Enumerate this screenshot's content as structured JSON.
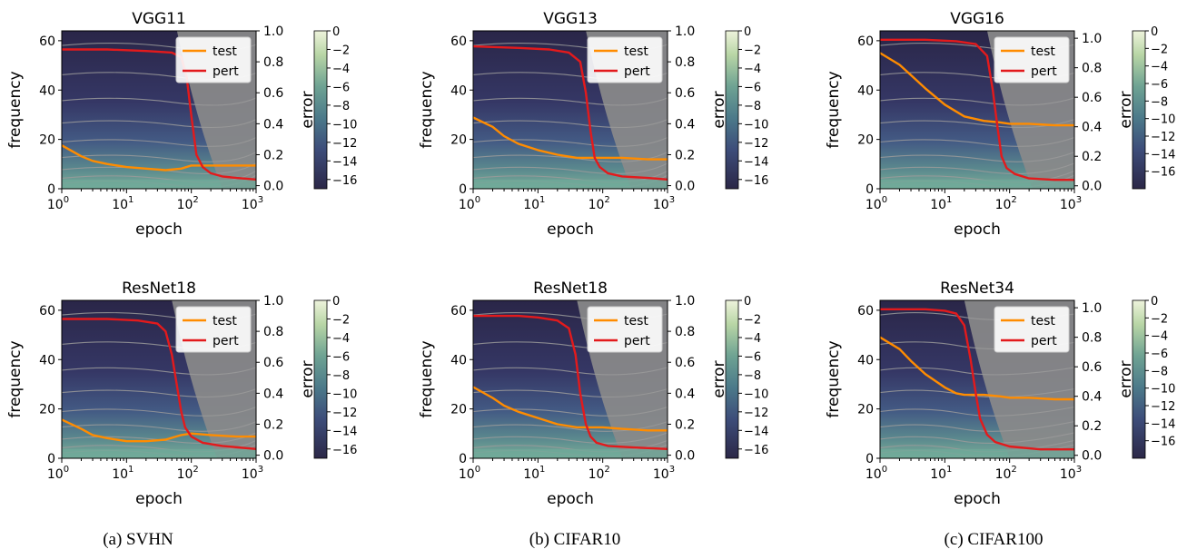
{
  "chart_data": [
    {
      "type": "heatmap",
      "title": "VGG11",
      "xlabel": "epoch",
      "ylabel": "frequency",
      "right_ylabel": "error",
      "x_scale": "log",
      "xlim": [
        1,
        1000
      ],
      "ylim": [
        0,
        64
      ],
      "right_ylim": [
        -0.02,
        1.0
      ],
      "colorbar": {
        "label": "",
        "range": [
          -17,
          0
        ],
        "ticks": [
          "0",
          "−2",
          "−4",
          "−6",
          "−8",
          "−10",
          "−12",
          "−14",
          "−16"
        ]
      },
      "x_ticks": [
        "10^0",
        "10^1",
        "10^2",
        "10^3"
      ],
      "y_ticks": [
        "0",
        "20",
        "40",
        "60"
      ],
      "right_ticks": [
        "0.0",
        "0.2",
        "0.4",
        "0.6",
        "0.8",
        "1.0"
      ],
      "legend": {
        "position": "top-right",
        "entries": [
          "test",
          "pert"
        ]
      },
      "series": [
        {
          "name": "test",
          "color": "#ff8c00",
          "x": [
            1,
            2,
            3,
            5,
            10,
            20,
            40,
            70,
            100,
            200,
            500,
            1000
          ],
          "values": [
            0.26,
            0.19,
            0.16,
            0.14,
            0.12,
            0.11,
            0.1,
            0.11,
            0.13,
            0.13,
            0.13,
            0.13
          ]
        },
        {
          "name": "pert",
          "color": "#e31a1c",
          "x": [
            1,
            5,
            20,
            50,
            70,
            85,
            100,
            120,
            150,
            200,
            300,
            500,
            1000
          ],
          "values": [
            0.88,
            0.88,
            0.87,
            0.86,
            0.83,
            0.7,
            0.45,
            0.2,
            0.12,
            0.08,
            0.06,
            0.05,
            0.04
          ]
        }
      ]
    },
    {
      "type": "heatmap",
      "title": "VGG13",
      "xlabel": "epoch",
      "ylabel": "frequency",
      "right_ylabel": "error",
      "x_scale": "log",
      "xlim": [
        1,
        1000
      ],
      "ylim": [
        0,
        64
      ],
      "right_ylim": [
        -0.02,
        1.0
      ],
      "colorbar": {
        "label": "",
        "range": [
          -17,
          0
        ],
        "ticks": [
          "0",
          "−2",
          "−4",
          "−6",
          "−8",
          "−10",
          "−12",
          "−14",
          "−16"
        ]
      },
      "x_ticks": [
        "10^0",
        "10^1",
        "10^2",
        "10^3"
      ],
      "y_ticks": [
        "0",
        "20",
        "40",
        "60"
      ],
      "right_ticks": [
        "0.0",
        "0.2",
        "0.4",
        "0.6",
        "0.8",
        "1.0"
      ],
      "legend": {
        "position": "top-right",
        "entries": [
          "test",
          "pert"
        ]
      },
      "series": [
        {
          "name": "test",
          "color": "#ff8c00",
          "x": [
            1,
            2,
            3,
            5,
            10,
            20,
            40,
            70,
            100,
            200,
            500,
            1000
          ],
          "values": [
            0.44,
            0.38,
            0.32,
            0.27,
            0.23,
            0.2,
            0.18,
            0.18,
            0.18,
            0.18,
            0.17,
            0.17
          ]
        },
        {
          "name": "pert",
          "color": "#e31a1c",
          "x": [
            1,
            5,
            15,
            30,
            45,
            55,
            65,
            75,
            90,
            120,
            200,
            500,
            1000
          ],
          "values": [
            0.9,
            0.89,
            0.88,
            0.86,
            0.8,
            0.6,
            0.35,
            0.18,
            0.12,
            0.08,
            0.06,
            0.05,
            0.04
          ]
        }
      ]
    },
    {
      "type": "heatmap",
      "title": "VGG16",
      "xlabel": "epoch",
      "ylabel": "frequency",
      "right_ylabel": "error",
      "x_scale": "log",
      "xlim": [
        1,
        1000
      ],
      "ylim": [
        0,
        64
      ],
      "right_ylim": [
        -0.02,
        1.05
      ],
      "colorbar": {
        "label": "",
        "range": [
          -18,
          0
        ],
        "ticks": [
          "0",
          "−2",
          "−4",
          "−6",
          "−8",
          "−10",
          "−12",
          "−14",
          "−16"
        ]
      },
      "x_ticks": [
        "10^0",
        "10^1",
        "10^2",
        "10^3"
      ],
      "y_ticks": [
        "0",
        "20",
        "40",
        "60"
      ],
      "right_ticks": [
        "0.0",
        "0.2",
        "0.4",
        "0.6",
        "0.8",
        "1.0"
      ],
      "legend": {
        "position": "top-right",
        "entries": [
          "test",
          "pert"
        ]
      },
      "series": [
        {
          "name": "test",
          "color": "#ff8c00",
          "x": [
            1,
            2,
            3,
            5,
            10,
            20,
            40,
            70,
            100,
            200,
            500,
            1000
          ],
          "values": [
            0.9,
            0.82,
            0.75,
            0.66,
            0.55,
            0.47,
            0.44,
            0.43,
            0.42,
            0.42,
            0.41,
            0.41
          ]
        },
        {
          "name": "pert",
          "color": "#e31a1c",
          "x": [
            1,
            5,
            15,
            30,
            45,
            55,
            65,
            75,
            90,
            120,
            200,
            500,
            1000
          ],
          "values": [
            0.99,
            0.99,
            0.98,
            0.96,
            0.88,
            0.65,
            0.4,
            0.2,
            0.12,
            0.08,
            0.05,
            0.04,
            0.04
          ]
        }
      ]
    },
    {
      "type": "heatmap",
      "title": "ResNet18",
      "xlabel": "epoch",
      "ylabel": "frequency",
      "right_ylabel": "error",
      "x_scale": "log",
      "xlim": [
        1,
        1000
      ],
      "ylim": [
        0,
        64
      ],
      "right_ylim": [
        -0.02,
        1.0
      ],
      "colorbar": {
        "label": "",
        "range": [
          -17,
          0
        ],
        "ticks": [
          "0",
          "−2",
          "−4",
          "−6",
          "−8",
          "−10",
          "−12",
          "−14",
          "−16"
        ]
      },
      "x_ticks": [
        "10^0",
        "10^1",
        "10^2",
        "10^3"
      ],
      "y_ticks": [
        "0",
        "20",
        "40",
        "60"
      ],
      "right_ticks": [
        "0.0",
        "0.2",
        "0.4",
        "0.6",
        "0.8",
        "1.0"
      ],
      "legend": {
        "position": "top-right",
        "entries": [
          "test",
          "pert"
        ]
      },
      "series": [
        {
          "name": "test",
          "color": "#ff8c00",
          "x": [
            1,
            2,
            3,
            5,
            10,
            20,
            40,
            70,
            100,
            200,
            500,
            1000
          ],
          "values": [
            0.23,
            0.17,
            0.13,
            0.11,
            0.09,
            0.09,
            0.1,
            0.13,
            0.14,
            0.13,
            0.12,
            0.12
          ]
        },
        {
          "name": "pert",
          "color": "#e31a1c",
          "x": [
            1,
            5,
            15,
            30,
            40,
            50,
            60,
            70,
            80,
            100,
            150,
            300,
            1000
          ],
          "values": [
            0.88,
            0.88,
            0.87,
            0.85,
            0.8,
            0.65,
            0.45,
            0.28,
            0.18,
            0.12,
            0.08,
            0.06,
            0.04
          ]
        }
      ]
    },
    {
      "type": "heatmap",
      "title": "ResNet18",
      "xlabel": "epoch",
      "ylabel": "frequency",
      "right_ylabel": "error",
      "x_scale": "log",
      "xlim": [
        1,
        1000
      ],
      "ylim": [
        0,
        64
      ],
      "right_ylim": [
        -0.02,
        1.0
      ],
      "colorbar": {
        "label": "",
        "range": [
          -17,
          0
        ],
        "ticks": [
          "0",
          "−2",
          "−4",
          "−6",
          "−8",
          "−10",
          "−12",
          "−14",
          "−16"
        ]
      },
      "x_ticks": [
        "10^0",
        "10^1",
        "10^2",
        "10^3"
      ],
      "y_ticks": [
        "0",
        "20",
        "40",
        "60"
      ],
      "right_ticks": [
        "0.0",
        "0.2",
        "0.4",
        "0.6",
        "0.8",
        "1.0"
      ],
      "legend": {
        "position": "top-right",
        "entries": [
          "test",
          "pert"
        ]
      },
      "series": [
        {
          "name": "test",
          "color": "#ff8c00",
          "x": [
            1,
            2,
            3,
            5,
            10,
            20,
            40,
            70,
            100,
            200,
            500,
            1000
          ],
          "values": [
            0.44,
            0.37,
            0.32,
            0.28,
            0.24,
            0.2,
            0.18,
            0.18,
            0.18,
            0.17,
            0.16,
            0.16
          ]
        },
        {
          "name": "pert",
          "color": "#e31a1c",
          "x": [
            1,
            5,
            10,
            20,
            30,
            38,
            45,
            55,
            65,
            80,
            120,
            300,
            1000
          ],
          "values": [
            0.9,
            0.9,
            0.89,
            0.87,
            0.82,
            0.65,
            0.4,
            0.2,
            0.12,
            0.08,
            0.06,
            0.05,
            0.04
          ]
        }
      ]
    },
    {
      "type": "heatmap",
      "title": "ResNet34",
      "xlabel": "epoch",
      "ylabel": "frequency",
      "right_ylabel": "error",
      "x_scale": "log",
      "xlim": [
        1,
        1000
      ],
      "ylim": [
        0,
        64
      ],
      "right_ylim": [
        -0.02,
        1.05
      ],
      "colorbar": {
        "label": "",
        "range": [
          -18,
          0
        ],
        "ticks": [
          "0",
          "−2",
          "−4",
          "−6",
          "−8",
          "−10",
          "−12",
          "−14",
          "−16"
        ]
      },
      "x_ticks": [
        "10^0",
        "10^1",
        "10^2",
        "10^3"
      ],
      "y_ticks": [
        "0",
        "20",
        "40",
        "60"
      ],
      "right_ticks": [
        "0.0",
        "0.2",
        "0.4",
        "0.6",
        "0.8",
        "1.0"
      ],
      "legend": {
        "position": "top-right",
        "entries": [
          "test",
          "pert"
        ]
      },
      "series": [
        {
          "name": "test",
          "color": "#ff8c00",
          "x": [
            1,
            2,
            3,
            5,
            10,
            15,
            20,
            40,
            70,
            100,
            200,
            500,
            1000
          ],
          "values": [
            0.8,
            0.72,
            0.64,
            0.55,
            0.46,
            0.42,
            0.41,
            0.41,
            0.4,
            0.39,
            0.39,
            0.38,
            0.38
          ]
        },
        {
          "name": "pert",
          "color": "#e31a1c",
          "x": [
            1,
            5,
            10,
            15,
            20,
            25,
            30,
            35,
            45,
            60,
            100,
            300,
            1000
          ],
          "values": [
            0.99,
            0.99,
            0.98,
            0.96,
            0.88,
            0.65,
            0.42,
            0.25,
            0.14,
            0.09,
            0.06,
            0.04,
            0.04
          ]
        }
      ]
    }
  ],
  "captions": [
    "(a) SVHN",
    "(b) CIFAR10",
    "(c) CIFAR100"
  ],
  "colors": {
    "heatmap_dark": "#2d2a4d",
    "heatmap_mid": "#3f4f7a",
    "heatmap_light": "#6fa9a0",
    "colorbar_top": "#e8f0d8",
    "contour": "#9a9a9a",
    "saturated_grey": "#8a8a8a"
  }
}
